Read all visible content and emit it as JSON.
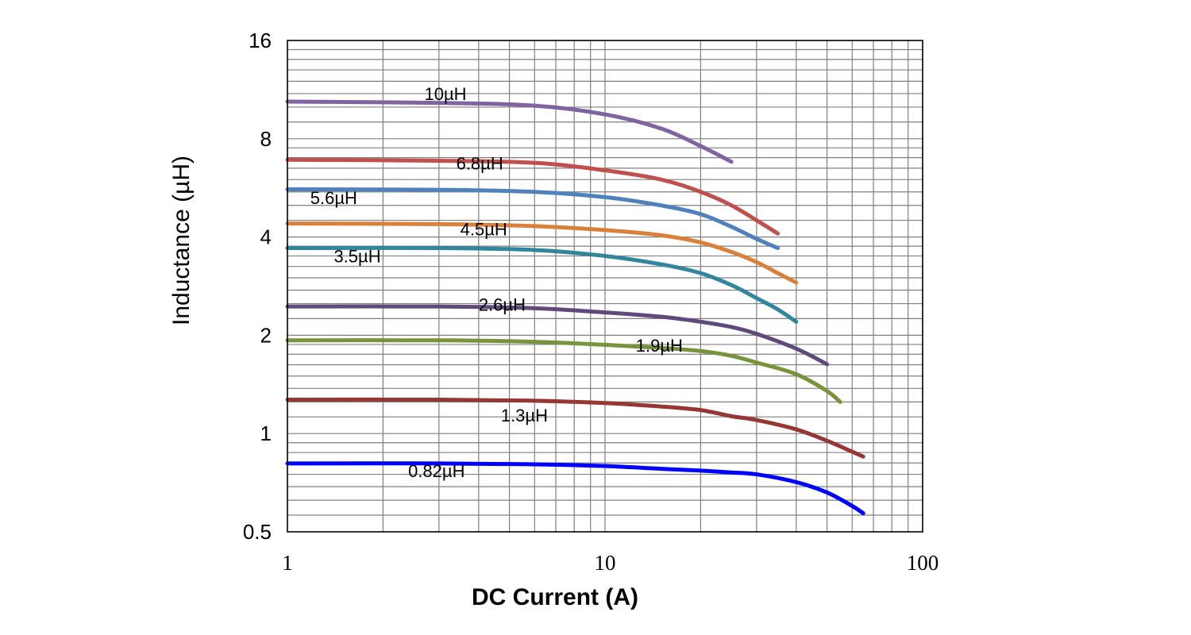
{
  "chart_data": {
    "type": "line",
    "title": "",
    "xlabel": "DC Current (A)",
    "ylabel": "Inductance (µH)",
    "xscale": "log",
    "yscale": "log",
    "xlim": [
      1,
      100
    ],
    "ylim": [
      0.5,
      16
    ],
    "xticks": [
      {
        "value": 1,
        "label": "1"
      },
      {
        "value": 10,
        "label": "10"
      },
      {
        "value": 100,
        "label": "100"
      }
    ],
    "yticks": [
      {
        "value": 0.5,
        "label": "0.5"
      },
      {
        "value": 1,
        "label": "1"
      },
      {
        "value": 2,
        "label": "2"
      },
      {
        "value": 4,
        "label": "4"
      },
      {
        "value": 8,
        "label": "8"
      },
      {
        "value": 16,
        "label": "16"
      }
    ],
    "grid": true,
    "series": [
      {
        "name": "10µH",
        "color": "#8064a2",
        "label_at": [
          2.7,
          10.5
        ],
        "x": [
          1,
          3,
          6,
          10,
          15,
          20,
          25
        ],
        "y": [
          10.4,
          10.3,
          10.1,
          9.5,
          8.6,
          7.6,
          6.8
        ]
      },
      {
        "name": "6.8µH",
        "color": "#c0504d",
        "label_at": [
          3.4,
          6.45
        ],
        "x": [
          1,
          3,
          6,
          10,
          15,
          20,
          25,
          30,
          35
        ],
        "y": [
          6.9,
          6.85,
          6.75,
          6.4,
          6.0,
          5.5,
          5.0,
          4.5,
          4.1
        ]
      },
      {
        "name": "5.6µH",
        "color": "#4f81bd",
        "label_at": [
          1.18,
          5.05
        ],
        "x": [
          1,
          3,
          6,
          10,
          15,
          20,
          25,
          30,
          35
        ],
        "y": [
          5.6,
          5.58,
          5.5,
          5.3,
          5.0,
          4.7,
          4.3,
          3.95,
          3.7
        ]
      },
      {
        "name": "4.5µH",
        "color": "#d9803a",
        "label_at": [
          3.5,
          4.05
        ],
        "x": [
          1,
          3,
          6,
          10,
          15,
          20,
          25,
          30,
          35,
          40
        ],
        "y": [
          4.4,
          4.38,
          4.32,
          4.2,
          4.05,
          3.85,
          3.6,
          3.35,
          3.1,
          2.9
        ]
      },
      {
        "name": "3.5µH",
        "color": "#31859c",
        "label_at": [
          1.4,
          3.35
        ],
        "x": [
          1,
          3,
          6,
          10,
          15,
          20,
          25,
          30,
          35,
          40
        ],
        "y": [
          3.7,
          3.7,
          3.65,
          3.5,
          3.3,
          3.1,
          2.85,
          2.6,
          2.4,
          2.2
        ]
      },
      {
        "name": "2.6µH",
        "color": "#604a7b",
        "label_at": [
          4.0,
          2.38
        ],
        "x": [
          1,
          3,
          6,
          10,
          15,
          20,
          25,
          30,
          40,
          50
        ],
        "y": [
          2.45,
          2.45,
          2.42,
          2.35,
          2.28,
          2.2,
          2.12,
          2.02,
          1.82,
          1.63
        ]
      },
      {
        "name": "1.9µH",
        "color": "#77933c",
        "label_at": [
          12.5,
          1.78
        ],
        "x": [
          1,
          3,
          6,
          10,
          15,
          20,
          25,
          30,
          40,
          50,
          55
        ],
        "y": [
          1.93,
          1.93,
          1.91,
          1.87,
          1.83,
          1.79,
          1.73,
          1.65,
          1.52,
          1.35,
          1.25
        ]
      },
      {
        "name": "1.3µH",
        "color": "#953735",
        "label_at": [
          4.7,
          1.09
        ],
        "x": [
          1,
          3,
          6,
          10,
          15,
          20,
          25,
          30,
          40,
          50,
          60,
          65
        ],
        "y": [
          1.27,
          1.27,
          1.26,
          1.24,
          1.21,
          1.18,
          1.13,
          1.1,
          1.03,
          0.95,
          0.88,
          0.85
        ]
      },
      {
        "name": "0.82µH",
        "color": "#0000ff",
        "label_at": [
          2.4,
          0.735
        ],
        "x": [
          1,
          3,
          6,
          10,
          15,
          20,
          25,
          30,
          40,
          50,
          60,
          65
        ],
        "y": [
          0.81,
          0.81,
          0.805,
          0.795,
          0.78,
          0.77,
          0.76,
          0.75,
          0.71,
          0.66,
          0.6,
          0.57
        ]
      }
    ]
  }
}
